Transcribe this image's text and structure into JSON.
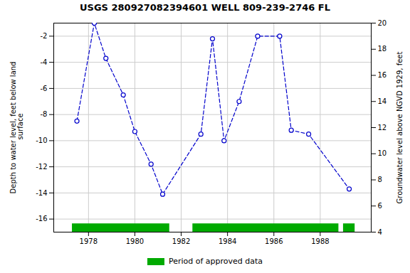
{
  "chart_data": {
    "type": "line",
    "title": "USGS 280927082394601 WELL 809-239-2746 FL",
    "ylabel": "Depth to water level, feet below land\n surface",
    "y2label": "Groundwater level above NGVD 1929, feet",
    "x": [
      1977.5,
      1978.25,
      1978.75,
      1979.5,
      1980.0,
      1980.7,
      1981.2,
      1982.85,
      1983.35,
      1983.85,
      1984.5,
      1985.3,
      1986.25,
      1986.75,
      1987.5,
      1989.25
    ],
    "series": [
      {
        "values": [
          -8.5,
          -1.0,
          -3.7,
          -6.5,
          -9.3,
          -11.8,
          -14.1,
          -9.5,
          -2.2,
          -10.0,
          -7.0,
          -2.0,
          -2.0,
          -9.2,
          -9.5,
          -13.7
        ],
        "color": "#0000CC",
        "marker": "circle",
        "line_style": "dashed"
      }
    ],
    "approved_periods": {
      "name": "Period of approved data",
      "color": "#00aa00",
      "ranges": [
        [
          1977.3,
          1981.5
        ],
        [
          1982.5,
          1988.8
        ],
        [
          1989.0,
          1989.5
        ]
      ]
    },
    "xlim": [
      1976.5,
      1990.2
    ],
    "xticks": [
      1978,
      1980,
      1982,
      1984,
      1986,
      1988
    ],
    "ylim": [
      -17,
      -1
    ],
    "yticks": [
      -2,
      -4,
      -6,
      -8,
      -10,
      -12,
      -14,
      -16
    ],
    "y2lim": [
      4,
      20
    ],
    "y2ticks": [
      4,
      6,
      8,
      10,
      12,
      14,
      16,
      18,
      20
    ],
    "grid": true,
    "legend": "bottom"
  }
}
